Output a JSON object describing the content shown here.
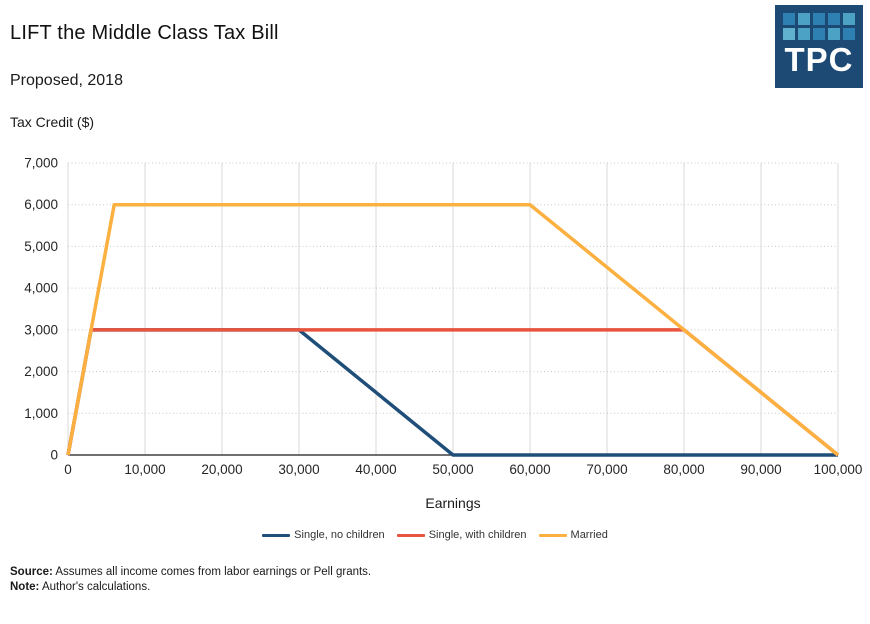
{
  "header": {
    "title": "LIFT the Middle Class Tax Bill",
    "subtitle": "Proposed, 2018"
  },
  "logo": {
    "text": "TPC",
    "background": "#1C4A74",
    "squares": [
      "#2E7FB2",
      "#4BA2C4",
      "#2E7FB2",
      "#2E7FB2",
      "#4BA2C4",
      "#5FB1CE",
      "#4BA2C4",
      "#2E7FB2",
      "#4BA2C4",
      "#2E7FB2"
    ]
  },
  "chart_data": {
    "type": "line",
    "title": "LIFT the Middle Class Tax Bill",
    "subtitle": "Proposed, 2018",
    "xlabel": "Earnings",
    "ylabel": "Tax Credit ($)",
    "xlim": [
      0,
      100000
    ],
    "ylim": [
      0,
      7000
    ],
    "x_ticks": [
      0,
      10000,
      20000,
      30000,
      40000,
      50000,
      60000,
      70000,
      80000,
      90000,
      100000
    ],
    "y_ticks": [
      0,
      1000,
      2000,
      3000,
      4000,
      5000,
      6000,
      7000
    ],
    "grid": {
      "vertical": "solid",
      "horizontal": "dotted"
    },
    "legend_position": "bottom",
    "series": [
      {
        "name": "Single, no children",
        "color": "#1F4E79",
        "points": [
          [
            0,
            0
          ],
          [
            3000,
            3000
          ],
          [
            30000,
            3000
          ],
          [
            50000,
            0
          ],
          [
            100000,
            0
          ]
        ]
      },
      {
        "name": "Single, with children",
        "color": "#E8543D",
        "points": [
          [
            0,
            0
          ],
          [
            3000,
            3000
          ],
          [
            80000,
            3000
          ],
          [
            100000,
            0
          ]
        ]
      },
      {
        "name": "Married",
        "color": "#FBB040",
        "points": [
          [
            0,
            0
          ],
          [
            6000,
            6000
          ],
          [
            60000,
            6000
          ],
          [
            100000,
            0
          ]
        ]
      }
    ]
  },
  "footer": {
    "source_label": "Source:",
    "source_text": "Assumes all income comes from labor earnings or Pell grants.",
    "note_label": "Note:",
    "note_text": "Author's calculations."
  }
}
